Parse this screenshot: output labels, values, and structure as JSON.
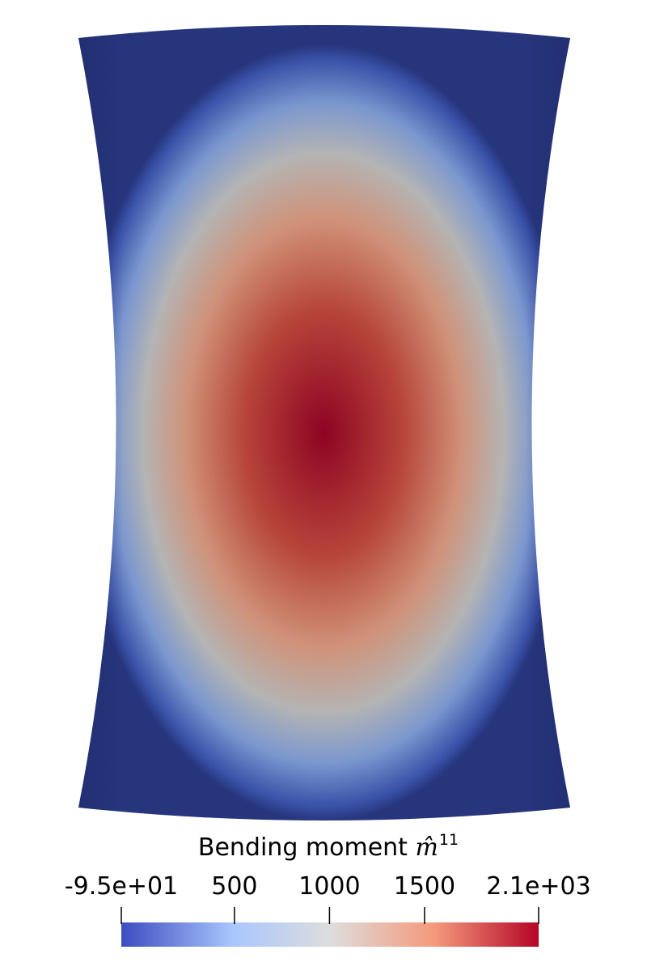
{
  "colorbar": {
    "title_text": "Bending moment ",
    "title_symbol": "m̂",
    "title_superscript": "11",
    "min": -95,
    "max": 2100,
    "ticks": [
      {
        "label": "-9.5e+01",
        "value": -95
      },
      {
        "label": "500",
        "value": 500
      },
      {
        "label": "1000",
        "value": 1000
      },
      {
        "label": "1500",
        "value": 1500
      },
      {
        "label": "2.1e+03",
        "value": 2100
      }
    ],
    "colors": {
      "low": "#3b4cc0",
      "mid_low": "#aac7fd",
      "mid": "#dddddd",
      "mid_high": "#f49a7b",
      "high": "#b40426"
    }
  },
  "field": {
    "max_value": 2100,
    "min_value": -95,
    "field_colors": {
      "edge": "#26357c",
      "outer": "#3a52a8",
      "blue_light": "#7b97cf",
      "gray": "#b4b4b4",
      "salmon": "#d09279",
      "red": "#b7463a",
      "deep_red": "#8e0323"
    }
  }
}
